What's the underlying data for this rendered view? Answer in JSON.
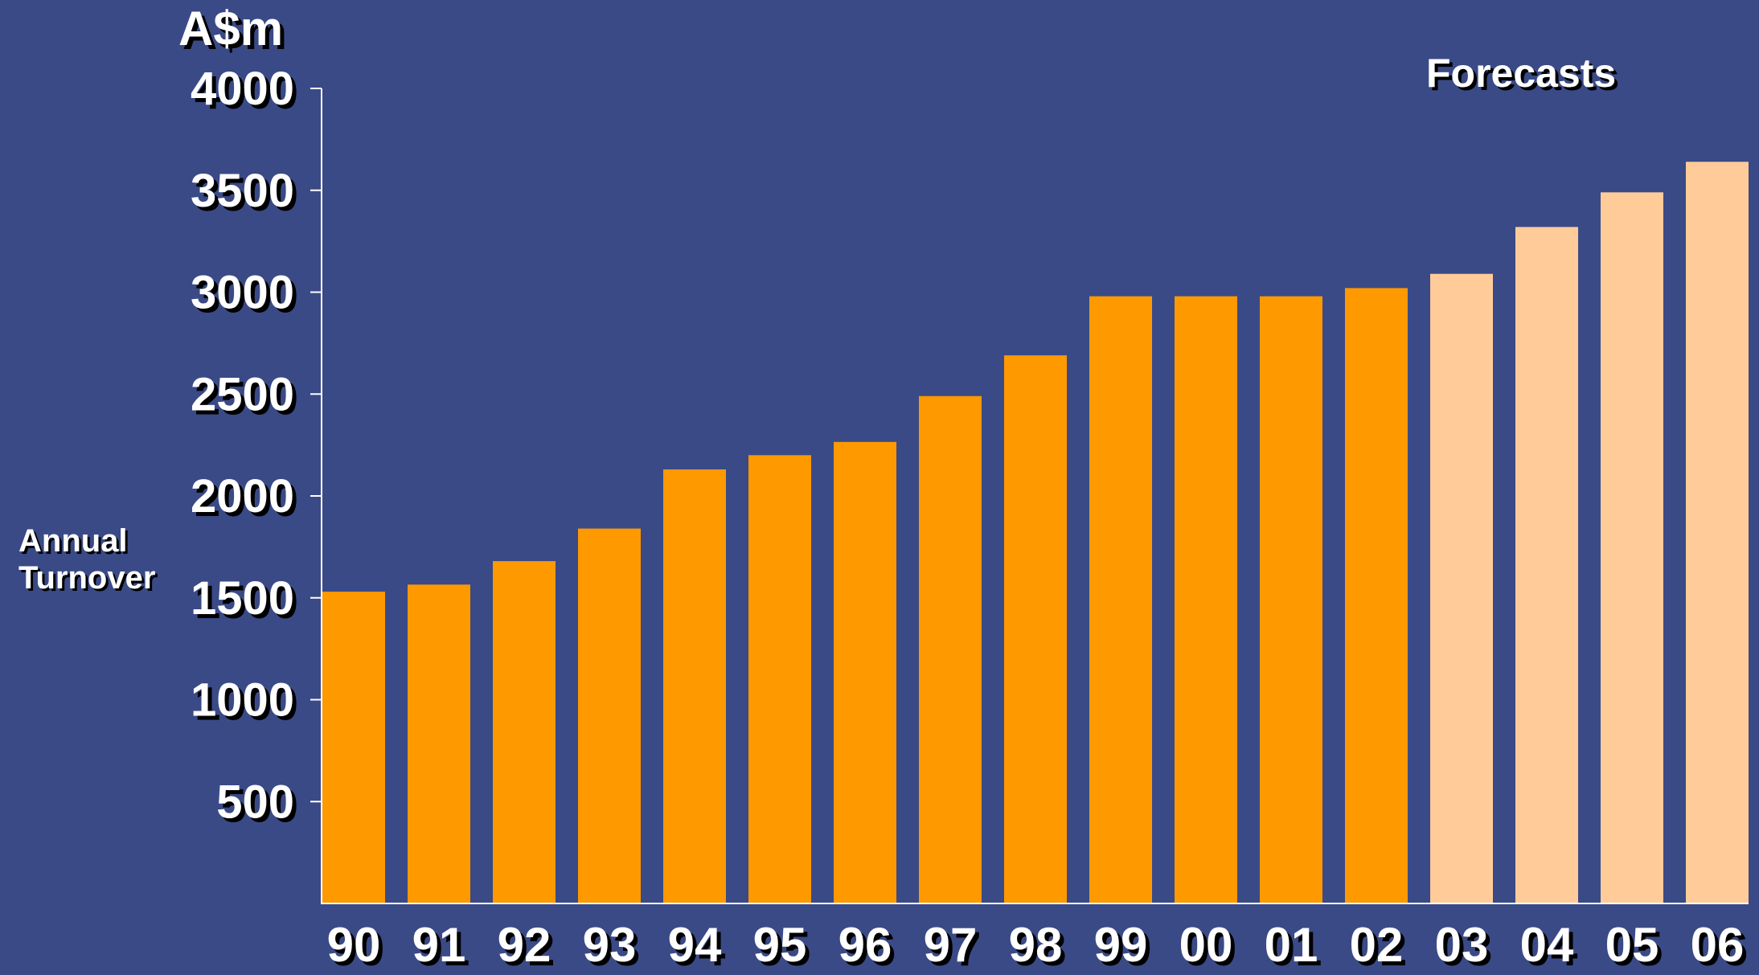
{
  "chart_data": {
    "type": "bar",
    "unit_label": "A$m",
    "ylabel": "Annual Turnover",
    "annotation": "Forecasts",
    "categories": [
      "90",
      "91",
      "92",
      "93",
      "94",
      "95",
      "96",
      "97",
      "98",
      "99",
      "00",
      "01",
      "02",
      "03",
      "04",
      "05",
      "06"
    ],
    "values": [
      1530,
      1565,
      1680,
      1840,
      2130,
      2200,
      2265,
      2490,
      2690,
      2980,
      2980,
      2980,
      3020,
      3090,
      3320,
      3490,
      3640
    ],
    "forecast_from_index": 13,
    "ylim": [
      0,
      4000
    ],
    "yticks": [
      500,
      1000,
      1500,
      2000,
      2500,
      3000,
      3500,
      4000
    ],
    "grid": false,
    "colors": {
      "background": "#3a4a86",
      "actual": "#ff9900",
      "forecast": "#ffcc99",
      "axis": "#ffffff",
      "text": "#ffffff",
      "shadow": "#000000"
    }
  }
}
